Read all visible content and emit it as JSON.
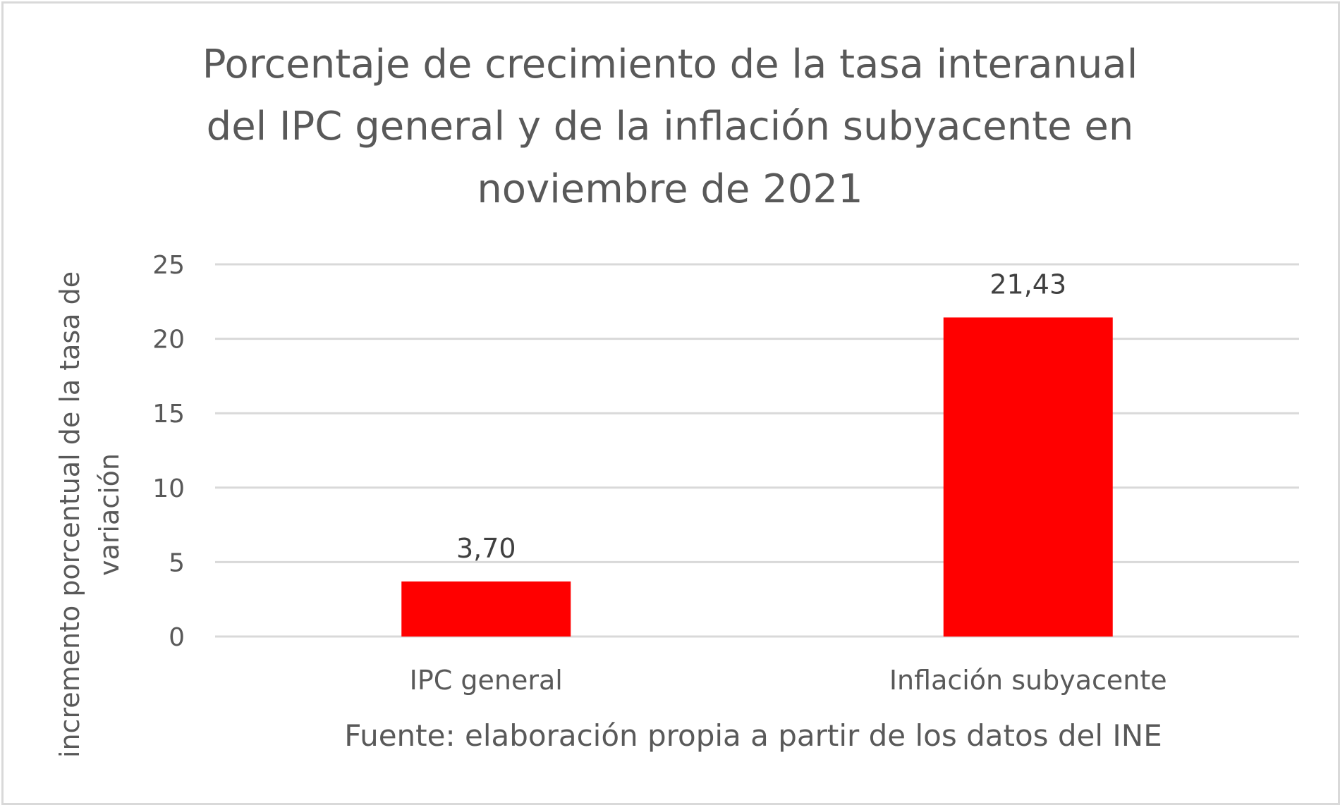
{
  "chart_data": {
    "type": "bar",
    "title_lines": [
      "Porcentaje de crecimiento de la tasa interanual",
      "del IPC general y de la inflación subyacente en",
      "noviembre de 2021"
    ],
    "categories": [
      "IPC general",
      "Inflación subyacente"
    ],
    "values": [
      3.7,
      21.43
    ],
    "data_labels": [
      "3,70",
      "21,43"
    ],
    "ylabel_lines": [
      "incremento porcentual de la tasa de",
      "variación"
    ],
    "xlabel": "Fuente: elaboración propia a partir de los datos del INE",
    "ylim": [
      0,
      25
    ],
    "yticks": [
      0,
      5,
      10,
      15,
      20,
      25
    ],
    "grid": true,
    "legend": "none",
    "colors": {
      "bar": "#ff0000",
      "grid": "#d9d9d9",
      "text": "#595959"
    }
  }
}
